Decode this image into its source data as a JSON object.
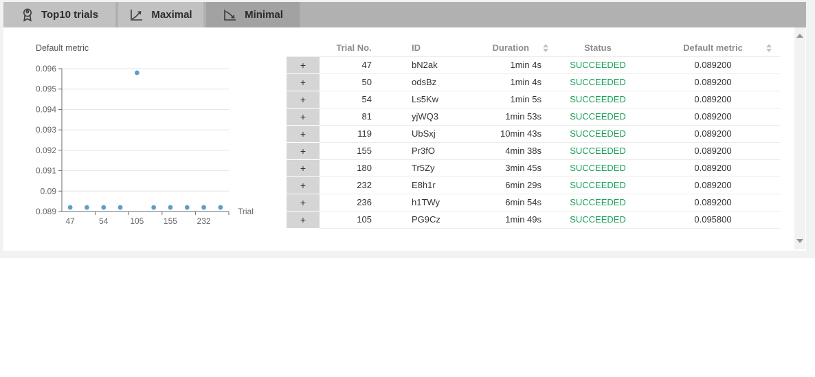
{
  "tabs": [
    {
      "label": "Top10 trials",
      "icon": "award-icon",
      "selected": false
    },
    {
      "label": "Maximal",
      "icon": "trend-up-icon",
      "selected": false
    },
    {
      "label": "Minimal",
      "icon": "trend-down-icon",
      "selected": true
    }
  ],
  "chart_data": {
    "type": "scatter",
    "title": "Default metric",
    "xlabel": "Trial",
    "ylabel": "",
    "categories": [
      47,
      50,
      54,
      81,
      105,
      119,
      155,
      180,
      232,
      236
    ],
    "values": [
      0.0892,
      0.0892,
      0.0892,
      0.0892,
      0.0958,
      0.0892,
      0.0892,
      0.0892,
      0.0892,
      0.0892
    ],
    "x_tick_labels": [
      "47",
      "54",
      "105",
      "155",
      "232"
    ],
    "x_label_every": 2,
    "y_ticks": [
      0.089,
      0.09,
      0.091,
      0.092,
      0.093,
      0.094,
      0.095,
      0.096
    ],
    "y_tick_labels": [
      "0.089",
      "0.09",
      "0.091",
      "0.092",
      "0.093",
      "0.094",
      "0.095",
      "0.096"
    ],
    "ylim": [
      0.089,
      0.096
    ],
    "grid": true,
    "legend_position": "none",
    "point_color": "#5d9fc7",
    "grid_color": "#e3e3e3",
    "axis_color": "#6b6b6b",
    "label_color": "#666666",
    "title_color": "#555555"
  },
  "table": {
    "expander_symbol": "+",
    "columns": [
      "Trial No.",
      "ID",
      "Duration",
      "Status",
      "Default metric"
    ],
    "status_color": "#18a058",
    "rows": [
      {
        "trial_no": "47",
        "id": "bN2ak",
        "duration": "1min 4s",
        "status": "SUCCEEDED",
        "metric": "0.089200"
      },
      {
        "trial_no": "50",
        "id": "odsBz",
        "duration": "1min 4s",
        "status": "SUCCEEDED",
        "metric": "0.089200"
      },
      {
        "trial_no": "54",
        "id": "Ls5Kw",
        "duration": "1min 5s",
        "status": "SUCCEEDED",
        "metric": "0.089200"
      },
      {
        "trial_no": "81",
        "id": "yjWQ3",
        "duration": "1min 53s",
        "status": "SUCCEEDED",
        "metric": "0.089200"
      },
      {
        "trial_no": "119",
        "id": "UbSxj",
        "duration": "10min 43s",
        "status": "SUCCEEDED",
        "metric": "0.089200"
      },
      {
        "trial_no": "155",
        "id": "Pr3fO",
        "duration": "4min 38s",
        "status": "SUCCEEDED",
        "metric": "0.089200"
      },
      {
        "trial_no": "180",
        "id": "Tr5Zy",
        "duration": "3min 45s",
        "status": "SUCCEEDED",
        "metric": "0.089200"
      },
      {
        "trial_no": "232",
        "id": "E8h1r",
        "duration": "6min 29s",
        "status": "SUCCEEDED",
        "metric": "0.089200"
      },
      {
        "trial_no": "236",
        "id": "h1TWy",
        "duration": "6min 54s",
        "status": "SUCCEEDED",
        "metric": "0.089200"
      },
      {
        "trial_no": "105",
        "id": "PG9Cz",
        "duration": "1min 49s",
        "status": "SUCCEEDED",
        "metric": "0.095800"
      }
    ]
  }
}
